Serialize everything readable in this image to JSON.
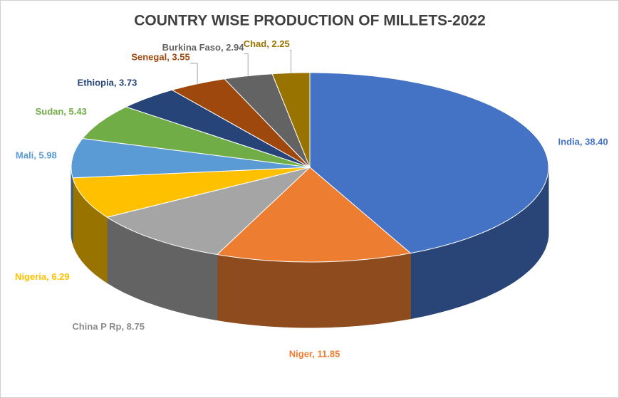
{
  "chart_data": {
    "type": "pie",
    "title": "COUNTRY WISE PRODUCTION OF MILLETS-2022",
    "values": [
      38.4,
      11.85,
      8.75,
      6.29,
      5.98,
      5.43,
      3.73,
      3.55,
      2.94,
      2.25
    ],
    "value_labels": [
      "India, 38.40",
      "Niger, 11.85",
      "China P Rp, 8.75",
      "Nigeria, 6.29",
      "Mali, 5.98",
      "Sudan, 5.43",
      "Ethiopia, 3.73",
      "Senegal, 3.55",
      "Burkina Faso, 2.94",
      "Chad, 2.25"
    ],
    "colors": [
      "#4472c4",
      "#ed7d31",
      "#a5a5a5",
      "#ffc000",
      "#5b9bd5",
      "#70ad47",
      "#264478",
      "#9e480e",
      "#636363",
      "#997300"
    ]
  }
}
